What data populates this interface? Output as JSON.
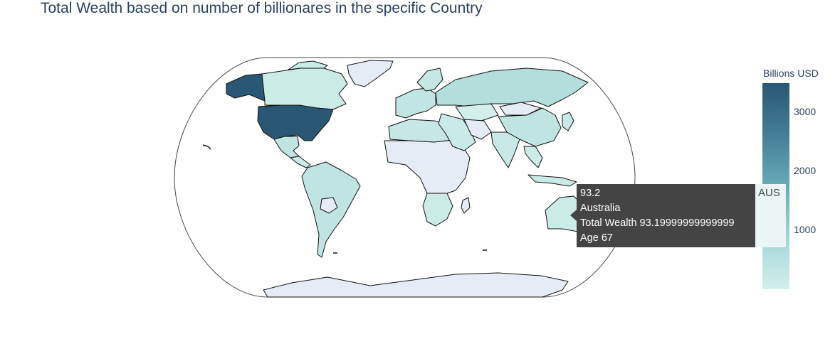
{
  "title": "Total Wealth based on number of billionares in the specific Country",
  "map": {
    "projection": "natural earth",
    "colorscale": [
      "#d3efec",
      "#a3d6d6",
      "#68abb8",
      "#437e96",
      "#2a5874"
    ],
    "no_data_color": "#e5ecf6",
    "highlighted_country": "Australia"
  },
  "colorbar": {
    "title": "Billions USD",
    "ticks": [
      "3000",
      "2000",
      "1000"
    ],
    "tick_values": [
      3000,
      2000,
      1000
    ],
    "range": [
      0,
      3500
    ]
  },
  "tooltip": {
    "value": "93.2",
    "country": "Australia",
    "total_wealth": "Total Wealth 93.19999999999999",
    "age": "Age 67",
    "code": "AUS"
  },
  "regions": [
    {
      "name": "canada",
      "color": "#cbebe7"
    },
    {
      "name": "united-states",
      "color": "#2a5874"
    },
    {
      "name": "alaska",
      "color": "#2a5874"
    },
    {
      "name": "greenland",
      "color": "#e5ecf6"
    },
    {
      "name": "mexico",
      "color": "#bfe4e1"
    },
    {
      "name": "central-america",
      "color": "#c9eae6"
    },
    {
      "name": "south-america",
      "color": "#bfe4e1"
    },
    {
      "name": "bolivia",
      "color": "#e5ecf6"
    },
    {
      "name": "europe",
      "color": "#c1e5e2"
    },
    {
      "name": "scandinavia",
      "color": "#c4e7e3"
    },
    {
      "name": "russia",
      "color": "#b4dedb"
    },
    {
      "name": "kazakhstan",
      "color": "#d3efec"
    },
    {
      "name": "mongolia",
      "color": "#e5ecf6"
    },
    {
      "name": "china",
      "color": "#c0e4e1"
    },
    {
      "name": "india",
      "color": "#c7e8e5"
    },
    {
      "name": "middle-east",
      "color": "#c9eae6"
    },
    {
      "name": "iran",
      "color": "#e5ecf6"
    },
    {
      "name": "north-africa",
      "color": "#c6e7e4"
    },
    {
      "name": "central-africa",
      "color": "#e5ecf6"
    },
    {
      "name": "southern-africa",
      "color": "#cbebe7"
    },
    {
      "name": "southeast-asia",
      "color": "#cbebe7"
    },
    {
      "name": "indonesia",
      "color": "#c9eae6"
    },
    {
      "name": "japan",
      "color": "#c7e8e5"
    },
    {
      "name": "australia",
      "color": "#cbebe7"
    },
    {
      "name": "new-zealand",
      "color": "#cbebe7"
    },
    {
      "name": "antarctica",
      "color": "#e5ecf6"
    }
  ]
}
